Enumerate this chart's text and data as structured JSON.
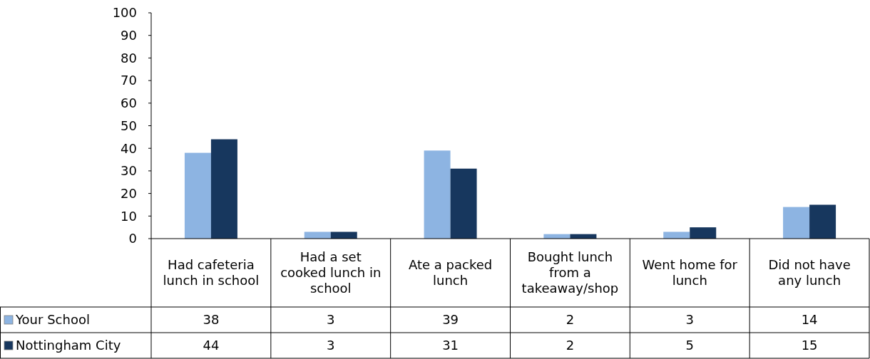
{
  "chart_data": {
    "type": "bar",
    "categories": [
      "Had cafeteria lunch in school",
      "Had a set cooked lunch in school",
      "Ate a packed lunch",
      "Bought lunch from a takeaway/shop",
      "Went home for lunch",
      "Did not have any lunch"
    ],
    "series": [
      {
        "name": "Your School",
        "color": "#8db4e2",
        "values": [
          38,
          3,
          39,
          2,
          3,
          14
        ]
      },
      {
        "name": "Nottingham City",
        "color": "#17375e",
        "values": [
          44,
          3,
          31,
          2,
          5,
          15
        ]
      }
    ],
    "ylim": [
      0,
      100
    ],
    "yticks": [
      0,
      10,
      20,
      30,
      40,
      50,
      60,
      70,
      80,
      90,
      100
    ],
    "grid": false,
    "legend": "bottom",
    "data_labels": true
  }
}
